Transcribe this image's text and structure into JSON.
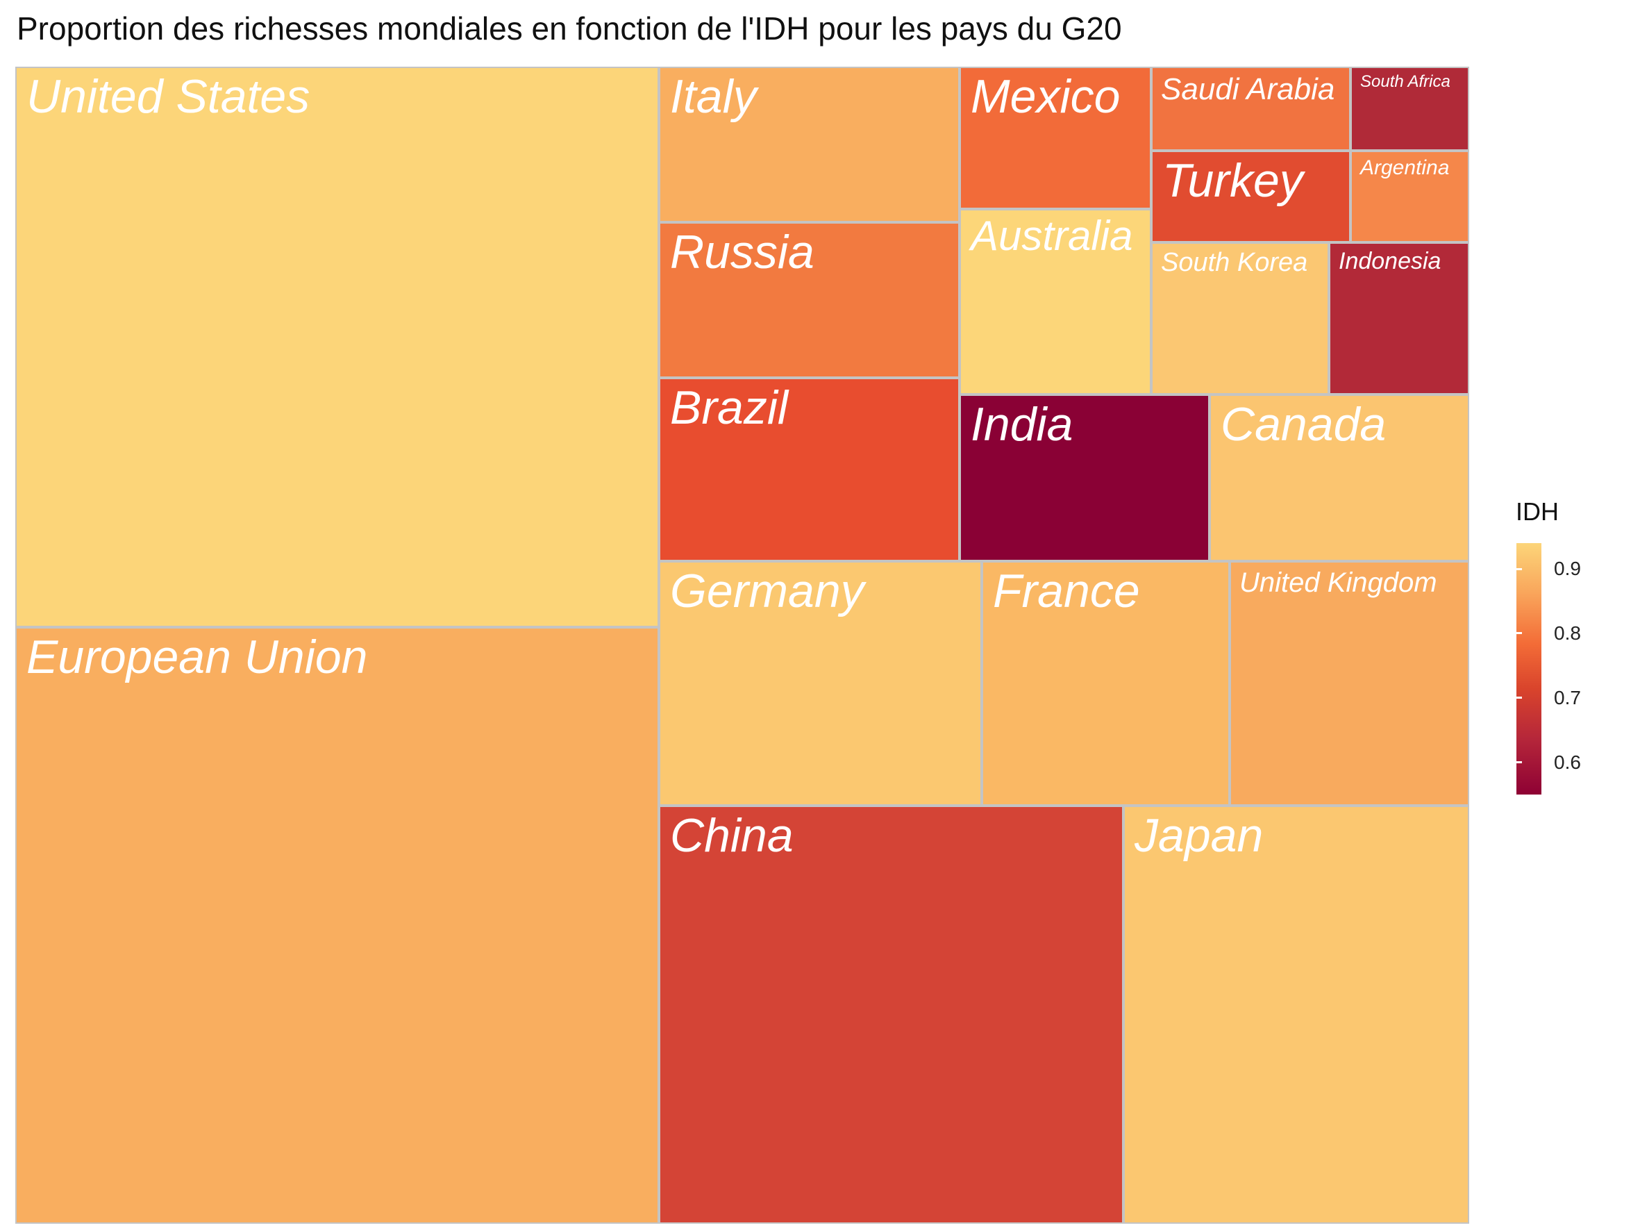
{
  "chart_data": {
    "type": "treemap",
    "title": "Proportion des richesses mondiales en fonction de l'IDH pour les pays du G20",
    "legend": {
      "title": "IDH",
      "placement": "right",
      "range": [
        0.55,
        0.94
      ],
      "ticks": [
        {
          "value": 0.9,
          "label": "0.9"
        },
        {
          "value": 0.8,
          "label": "0.8"
        },
        {
          "value": 0.7,
          "label": "0.7"
        },
        {
          "value": 0.6,
          "label": "0.6"
        }
      ],
      "colors": [
        "#8e0134",
        "#fcd579"
      ]
    },
    "tiles": [
      {
        "name": "United States",
        "idh": 0.93,
        "color": "#fcd579"
      },
      {
        "name": "European Union",
        "idh": 0.88,
        "color": "#f9ae5f"
      },
      {
        "name": "Italy",
        "idh": 0.88,
        "color": "#f9ae5f"
      },
      {
        "name": "Russia",
        "idh": 0.81,
        "color": "#f27a40"
      },
      {
        "name": "Brazil",
        "idh": 0.76,
        "color": "#e84d2f"
      },
      {
        "name": "Mexico",
        "idh": 0.77,
        "color": "#f26b39"
      },
      {
        "name": "Australia",
        "idh": 0.94,
        "color": "#fcd679"
      },
      {
        "name": "Saudi Arabia",
        "idh": 0.85,
        "color": "#f17340"
      },
      {
        "name": "South Africa",
        "idh": 0.71,
        "color": "#b02a38"
      },
      {
        "name": "Turkey",
        "idh": 0.79,
        "color": "#e14c30"
      },
      {
        "name": "Argentina",
        "idh": 0.84,
        "color": "#f5874a"
      },
      {
        "name": "South Korea",
        "idh": 0.91,
        "color": "#fbc772"
      },
      {
        "name": "Indonesia",
        "idh": 0.7,
        "color": "#b22938"
      },
      {
        "name": "India",
        "idh": 0.64,
        "color": "#8a0135"
      },
      {
        "name": "Canada",
        "idh": 0.93,
        "color": "#fbc570"
      },
      {
        "name": "Germany",
        "idh": 0.94,
        "color": "#fbc870"
      },
      {
        "name": "France",
        "idh": 0.9,
        "color": "#fab864"
      },
      {
        "name": "United Kingdom",
        "idh": 0.92,
        "color": "#f8aa5e"
      },
      {
        "name": "China",
        "idh": 0.76,
        "color": "#d44436"
      },
      {
        "name": "Japan",
        "idh": 0.92,
        "color": "#fbc770"
      }
    ]
  }
}
